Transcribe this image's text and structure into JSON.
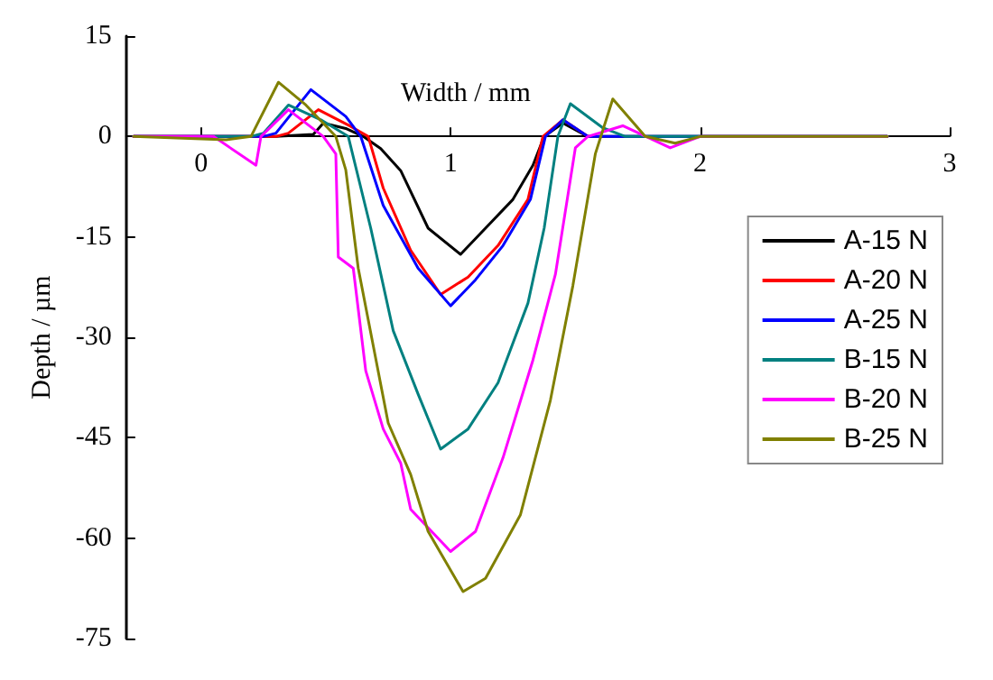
{
  "chart_data": {
    "type": "line",
    "xlabel": "Width / mm",
    "ylabel": "Depth / µm",
    "xlim": [
      -0.3,
      3
    ],
    "xticks": [
      0,
      1,
      2,
      3
    ],
    "ylim": [
      -75,
      15
    ],
    "yticks": [
      -75,
      -60,
      -45,
      -30,
      -15,
      0,
      15
    ],
    "grid": false,
    "legend": "right",
    "marker": "none",
    "line_style": "solid",
    "series": [
      {
        "name": "A-15 N",
        "color": "#000000",
        "x": [
          -0.27,
          0.3,
          0.45,
          0.49,
          0.58,
          0.65,
          0.72,
          0.8,
          0.91,
          1.04,
          1.14,
          1.25,
          1.33,
          1.375,
          1.45,
          1.55,
          2.0,
          2.75
        ],
        "values": [
          0,
          0,
          0.3,
          2,
          1.2,
          0,
          -1.8,
          -5.1,
          -13.7,
          -17.6,
          -13.7,
          -9.4,
          -4.3,
          0,
          2,
          0,
          0,
          0
        ]
      },
      {
        "name": "A-20 N",
        "color": "#ff0000",
        "x": [
          -0.27,
          0.3,
          0.35,
          0.47,
          0.6,
          0.67,
          0.73,
          0.84,
          0.96,
          1.07,
          1.19,
          1.31,
          1.37,
          1.45,
          1.55
        ],
        "values": [
          0,
          0,
          0.5,
          4,
          1.5,
          0,
          -7.7,
          -17,
          -23.6,
          -21,
          -16.3,
          -9.4,
          0,
          2.5,
          0
        ]
      },
      {
        "name": "A-25 N",
        "color": "#0000ff",
        "x": [
          -0.27,
          0.25,
          0.3,
          0.44,
          0.58,
          0.64,
          0.73,
          0.87,
          1.0,
          1.1,
          1.21,
          1.32,
          1.38,
          1.45,
          1.55,
          2.0,
          2.75
        ],
        "values": [
          0,
          0,
          0.5,
          7,
          3,
          0,
          -10.3,
          -19.7,
          -25.3,
          -21.4,
          -16.3,
          -9.4,
          0,
          2.5,
          0,
          0,
          0
        ]
      },
      {
        "name": "B-15 N",
        "color": "#008080",
        "x": [
          -0.27,
          0.2,
          0.25,
          0.35,
          0.48,
          0.59,
          0.68,
          0.77,
          0.87,
          0.96,
          1.07,
          1.19,
          1.31,
          1.375,
          1.43,
          1.48,
          1.61,
          1.7,
          2.0,
          2.75
        ],
        "values": [
          0,
          0,
          0.5,
          4.7,
          2.5,
          0,
          -13.7,
          -29,
          -38.5,
          -46.7,
          -43.7,
          -36.8,
          -24.9,
          -13.7,
          0,
          4.9,
          1.3,
          0,
          0,
          0
        ]
      },
      {
        "name": "B-20 N",
        "color": "#ff00ff",
        "x": [
          -0.27,
          0.05,
          0.22,
          0.24,
          0.35,
          0.49,
          0.54,
          0.55,
          0.61,
          0.66,
          0.73,
          0.8,
          0.84,
          1.0,
          1.1,
          1.21,
          1.33,
          1.42,
          1.5,
          1.55,
          1.69,
          1.88,
          2.0,
          2.75
        ],
        "values": [
          0,
          0,
          -4.3,
          0,
          4,
          0,
          -2.6,
          -18,
          -19.7,
          -35,
          -43.7,
          -48.8,
          -55.7,
          -62,
          -59,
          -48,
          -33.4,
          -20.6,
          -1.7,
          0,
          1.6,
          -1.7,
          0,
          0
        ]
      },
      {
        "name": "B-25 N",
        "color": "#808000",
        "x": [
          -0.27,
          0.1,
          0.2,
          0.31,
          0.42,
          0.54,
          0.58,
          0.63,
          0.75,
          0.84,
          0.91,
          1.05,
          1.14,
          1.28,
          1.4,
          1.49,
          1.58,
          1.65,
          1.78,
          1.9,
          2.0,
          2.75
        ],
        "values": [
          0,
          -0.5,
          0,
          8.1,
          4.7,
          0,
          -5,
          -19.7,
          -42.8,
          -50.5,
          -59,
          -68,
          -66,
          -56.5,
          -39.4,
          -22.3,
          -2.6,
          5.6,
          0,
          -1,
          0,
          0
        ]
      }
    ]
  }
}
